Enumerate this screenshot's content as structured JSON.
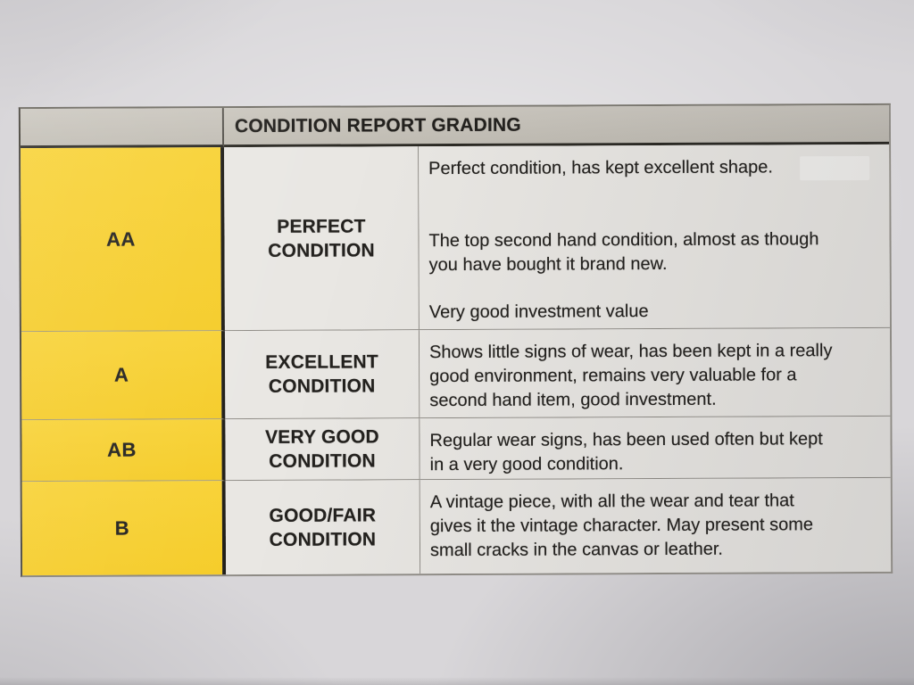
{
  "document": {
    "title": "CONDITION REPORT GRADING",
    "rows": [
      {
        "grade": "AA",
        "label": "PERFECT\nCONDITION",
        "paragraphs": [
          "Perfect condition, has kept excellent shape.",
          "The top second hand condition, almost as though\nyou have bought it brand new.",
          "Very good investment value"
        ]
      },
      {
        "grade": "A",
        "label": "EXCELLENT\nCONDITION",
        "paragraphs": [
          "Shows little signs of wear, has been kept in a really\ngood environment, remains very valuable for a\nsecond hand item, good investment."
        ]
      },
      {
        "grade": "AB",
        "label": "VERY GOOD\nCONDITION",
        "paragraphs": [
          "Regular wear signs, has been used often but kept\nin a very good condition."
        ]
      },
      {
        "grade": "B",
        "label": "GOOD/FAIR\nCONDITION",
        "paragraphs": [
          "A vintage piece, with all the wear and tear that\ngives it the vintage character. May present some\nsmall cracks in the canvas or leather."
        ]
      }
    ],
    "colors": {
      "grade_column_yellow": "#f5cc29",
      "header_bar_gray": "#c6c2ba",
      "cell_background": "#e9e7e3",
      "ink": "#23211e"
    }
  }
}
